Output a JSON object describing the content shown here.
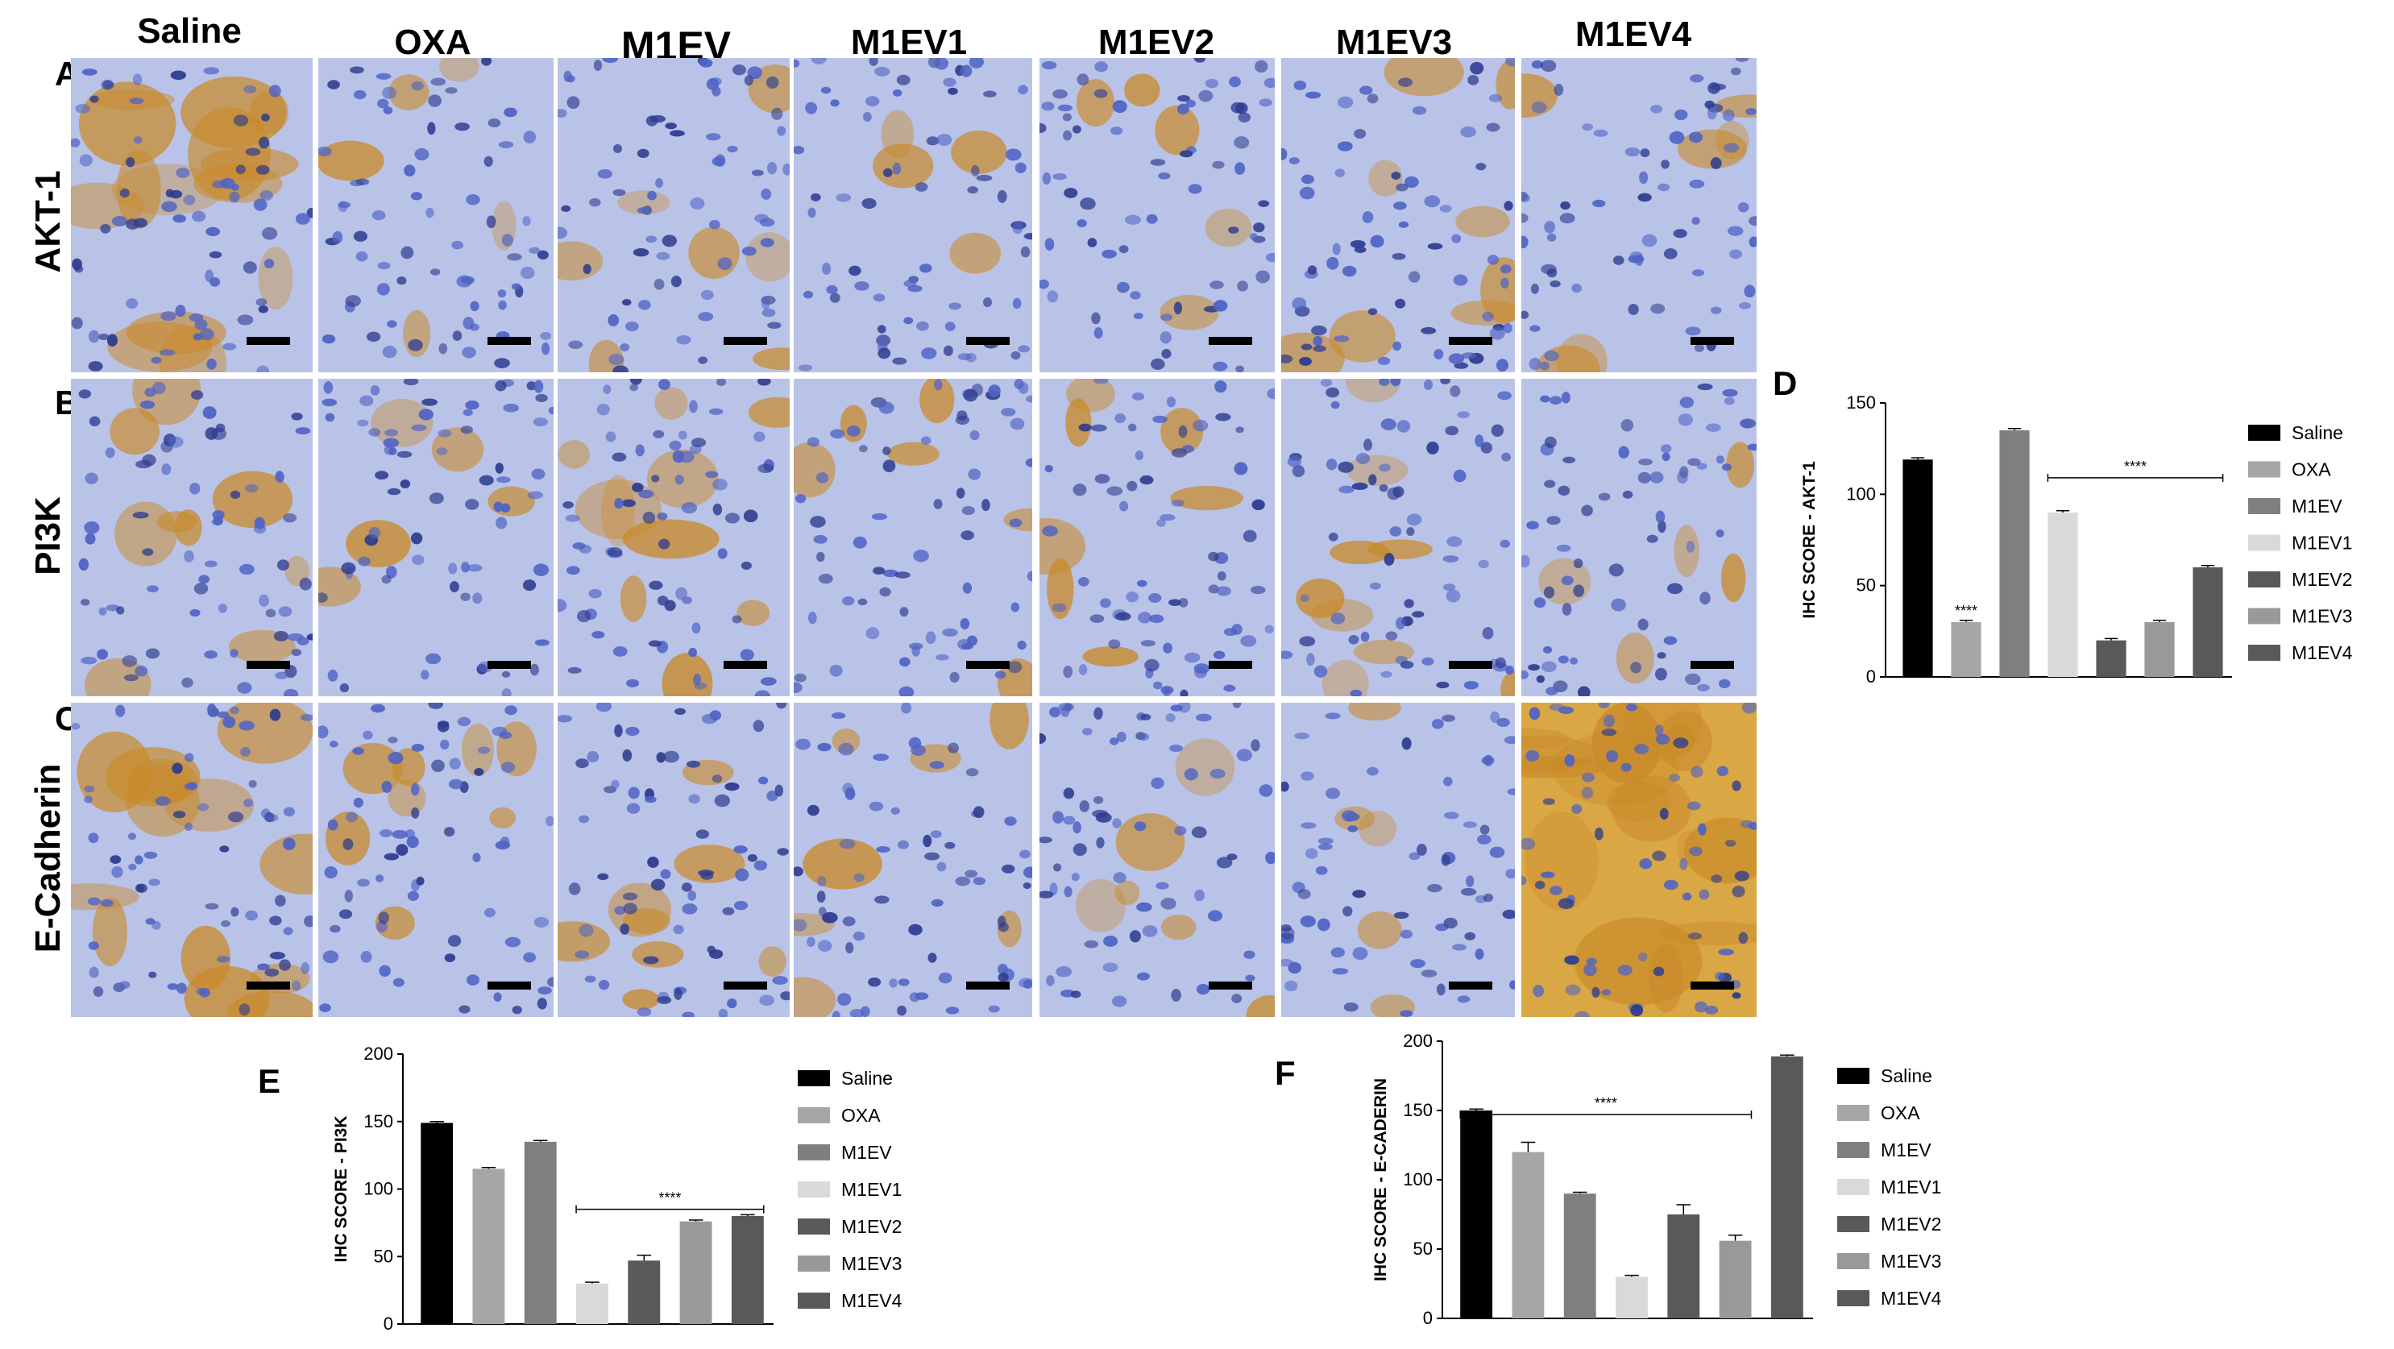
{
  "figure": {
    "column_headers": [
      "Saline",
      "OXA",
      "M1EV",
      "M1EV1",
      "M1EV2",
      "M1EV3",
      "M1EV4"
    ],
    "rows": [
      {
        "letter": "A",
        "marker": "AKT-1"
      },
      {
        "letter": "B",
        "marker": "PI3K"
      },
      {
        "letter": "C",
        "marker": "E-Cadherin"
      }
    ],
    "stain_colors": {
      "hematoxylin": "#4f63c4",
      "dab": "#c98a2a",
      "background": "#b9c3e8"
    },
    "staining_level": [
      [
        0.75,
        0.15,
        0.3,
        0.1,
        0.12,
        0.35,
        0.18
      ],
      [
        0.4,
        0.12,
        0.5,
        0.2,
        0.25,
        0.45,
        0.15
      ],
      [
        0.7,
        0.35,
        0.35,
        0.3,
        0.2,
        0.15,
        0.9
      ]
    ]
  },
  "chart_data": [
    {
      "panel": "D",
      "type": "bar",
      "categories": [
        "Saline",
        "OXA",
        "M1EV",
        "M1EV1",
        "M1EV2",
        "M1EV3",
        "M1EV4"
      ],
      "values": [
        119,
        30,
        135,
        90,
        20,
        30,
        60
      ],
      "errors": [
        1,
        1,
        1,
        1,
        1,
        1,
        1
      ],
      "colors": [
        "#000000",
        "#a6a6a6",
        "#7f7f7f",
        "#d9d9d9",
        "#595959",
        "#999999",
        "#595959"
      ],
      "ylabel": "IHC SCORE - AKT-1",
      "ylim": [
        0,
        150
      ],
      "yticks": [
        0,
        50,
        100,
        150
      ],
      "legend": [
        "Saline",
        "OXA",
        "M1EV",
        "M1EV1",
        "M1EV2",
        "M1EV3",
        "M1EV4"
      ],
      "legend_position": "right",
      "annotations": [
        {
          "text": "****",
          "type": "over-bar",
          "category": "OXA"
        },
        {
          "text": "****",
          "type": "bracket",
          "from": "M1EV1",
          "to": "M1EV4",
          "y": 109
        }
      ]
    },
    {
      "panel": "E",
      "type": "bar",
      "categories": [
        "Saline",
        "OXA",
        "M1EV",
        "M1EV1",
        "M1EV2",
        "M1EV3",
        "M1EV4"
      ],
      "values": [
        149,
        115,
        135,
        30,
        47,
        76,
        80
      ],
      "errors": [
        1,
        1,
        1,
        1,
        4,
        1,
        1
      ],
      "colors": [
        "#000000",
        "#a6a6a6",
        "#7f7f7f",
        "#d9d9d9",
        "#595959",
        "#999999",
        "#595959"
      ],
      "ylabel": "IHC SCORE - PI3K",
      "ylim": [
        0,
        200
      ],
      "yticks": [
        0,
        50,
        100,
        150,
        200
      ],
      "legend": [
        "Saline",
        "OXA",
        "M1EV",
        "M1EV1",
        "M1EV2",
        "M1EV3",
        "M1EV4"
      ],
      "legend_position": "right",
      "annotations": [
        {
          "text": "****",
          "type": "bracket",
          "from": "M1EV1",
          "to": "M1EV4",
          "y": 85
        }
      ]
    },
    {
      "panel": "F",
      "type": "bar",
      "categories": [
        "Saline",
        "OXA",
        "M1EV",
        "M1EV1",
        "M1EV2",
        "M1EV3",
        "M1EV4"
      ],
      "values": [
        150,
        120,
        90,
        30,
        75,
        56,
        189
      ],
      "errors": [
        1,
        7,
        1,
        1,
        7,
        4,
        1
      ],
      "colors": [
        "#000000",
        "#a6a6a6",
        "#7f7f7f",
        "#d9d9d9",
        "#595959",
        "#999999",
        "#595959"
      ],
      "ylabel": "IHC SCORE - E-CADERIN",
      "ylim": [
        0,
        200
      ],
      "yticks": [
        0,
        50,
        100,
        150,
        200
      ],
      "legend": [
        "Saline",
        "OXA",
        "M1EV",
        "M1EV1",
        "M1EV2",
        "M1EV3",
        "M1EV4"
      ],
      "legend_position": "right",
      "annotations": [
        {
          "text": "****",
          "type": "bracket",
          "from": "Saline",
          "to": "M1EV3",
          "y": 147
        }
      ]
    }
  ]
}
